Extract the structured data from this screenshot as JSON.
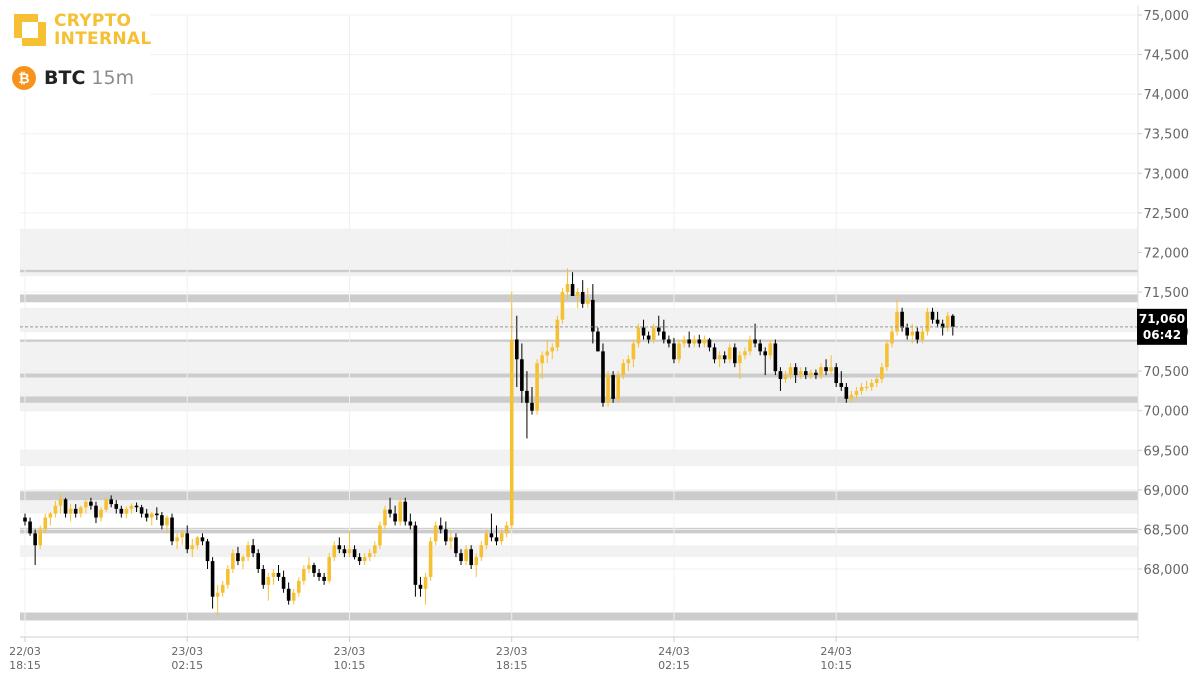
{
  "brand": {
    "line1": "CRYPTO",
    "line2": "INTERNAL",
    "color": "#f5c033"
  },
  "pair": {
    "coin_symbol": "₿",
    "coin_color": "#f7931a",
    "ticker": "BTC",
    "timeframe": "15m"
  },
  "current_price": {
    "price": "71,060",
    "countdown": "06:42",
    "value": 71060
  },
  "colors": {
    "up": "#f5c033",
    "down": "#000000",
    "band_dark": "#cccccc",
    "band_light": "#ededed",
    "grid": "#f0f0f0",
    "tick_label": "#666666"
  },
  "chart_data": {
    "type": "candlestick",
    "title": "",
    "xlabel": "",
    "ylabel": "",
    "ylim": [
      67350,
      75000
    ],
    "y_ticks": [
      68000,
      68500,
      69000,
      69500,
      70000,
      70500,
      71000,
      71500,
      72000,
      72500,
      73000,
      73500,
      74000,
      74500,
      75000
    ],
    "y_tick_labels": [
      "68,000",
      "68,500",
      "69,000",
      "69,500",
      "70,000",
      "70,500",
      "71,000",
      "71,500",
      "72,000",
      "72,500",
      "73,000",
      "73,500",
      "74,000",
      "74,500",
      "75,000"
    ],
    "x_ticks": [
      {
        "index": 0,
        "date": "22/03",
        "time": "18:15"
      },
      {
        "index": 32,
        "date": "23/03",
        "time": "02:15"
      },
      {
        "index": 64,
        "date": "23/03",
        "time": "10:15"
      },
      {
        "index": 96,
        "date": "23/03",
        "time": "18:15"
      },
      {
        "index": 128,
        "date": "24/03",
        "time": "02:15"
      },
      {
        "index": 160,
        "date": "24/03",
        "time": "10:15"
      }
    ],
    "interval": "15m",
    "grid": true,
    "levels_light": [
      [
        72300,
        71700
      ],
      [
        71300,
        71000
      ],
      [
        70900,
        70000
      ],
      [
        69500,
        69300
      ],
      [
        69000,
        68700
      ],
      [
        68300,
        68150
      ]
    ],
    "levels_dark": [
      [
        71780,
        71750
      ],
      [
        71470,
        71370
      ],
      [
        70900,
        70870
      ],
      [
        70470,
        70420
      ],
      [
        70180,
        70100
      ],
      [
        68980,
        68870
      ],
      [
        68520,
        68450
      ],
      [
        67450,
        67350
      ]
    ],
    "candles": [
      [
        68650,
        68700,
        68550,
        68600
      ],
      [
        68600,
        68650,
        68420,
        68450
      ],
      [
        68450,
        68500,
        68050,
        68300
      ],
      [
        68300,
        68550,
        68250,
        68500
      ],
      [
        68500,
        68700,
        68450,
        68650
      ],
      [
        68650,
        68720,
        68550,
        68700
      ],
      [
        68700,
        68860,
        68650,
        68800
      ],
      [
        68800,
        68950,
        68700,
        68880
      ],
      [
        68880,
        68900,
        68650,
        68700
      ],
      [
        68700,
        68820,
        68600,
        68760
      ],
      [
        68760,
        68820,
        68650,
        68700
      ],
      [
        68700,
        68800,
        68650,
        68780
      ],
      [
        68780,
        68880,
        68700,
        68850
      ],
      [
        68850,
        68900,
        68750,
        68800
      ],
      [
        68800,
        68850,
        68580,
        68650
      ],
      [
        68650,
        68780,
        68600,
        68750
      ],
      [
        68750,
        68900,
        68720,
        68880
      ],
      [
        68880,
        68930,
        68780,
        68820
      ],
      [
        68820,
        68870,
        68700,
        68760
      ],
      [
        68760,
        68800,
        68650,
        68700
      ],
      [
        68700,
        68790,
        68640,
        68760
      ],
      [
        68760,
        68830,
        68700,
        68800
      ],
      [
        68800,
        68840,
        68720,
        68780
      ],
      [
        68780,
        68810,
        68650,
        68700
      ],
      [
        68700,
        68760,
        68600,
        68650
      ],
      [
        68650,
        68720,
        68550,
        68700
      ],
      [
        68700,
        68780,
        68620,
        68680
      ],
      [
        68680,
        68720,
        68500,
        68550
      ],
      [
        68550,
        68680,
        68450,
        68650
      ],
      [
        68650,
        68700,
        68300,
        68350
      ],
      [
        68350,
        68450,
        68250,
        68400
      ],
      [
        68400,
        68500,
        68300,
        68450
      ],
      [
        68450,
        68550,
        68200,
        68250
      ],
      [
        68250,
        68380,
        68150,
        68300
      ],
      [
        68300,
        68420,
        68250,
        68400
      ],
      [
        68400,
        68450,
        68300,
        68350
      ],
      [
        68350,
        68380,
        68000,
        68100
      ],
      [
        68100,
        68150,
        67500,
        67650
      ],
      [
        67650,
        67800,
        67400,
        67700
      ],
      [
        67700,
        67850,
        67650,
        67800
      ],
      [
        67800,
        68050,
        67750,
        68000
      ],
      [
        68000,
        68250,
        67950,
        68200
      ],
      [
        68200,
        68280,
        68050,
        68100
      ],
      [
        68100,
        68180,
        68000,
        68150
      ],
      [
        68150,
        68350,
        68100,
        68300
      ],
      [
        68300,
        68380,
        68150,
        68200
      ],
      [
        68200,
        68250,
        67950,
        68000
      ],
      [
        68000,
        68050,
        67750,
        67800
      ],
      [
        67800,
        67950,
        67600,
        67900
      ],
      [
        67900,
        68000,
        67800,
        67950
      ],
      [
        67950,
        68050,
        67850,
        67900
      ],
      [
        67900,
        67980,
        67700,
        67750
      ],
      [
        67750,
        67830,
        67550,
        67600
      ],
      [
        67600,
        67750,
        67550,
        67700
      ],
      [
        67700,
        67900,
        67650,
        67850
      ],
      [
        67850,
        68050,
        67800,
        68000
      ],
      [
        68000,
        68150,
        67950,
        68050
      ],
      [
        68050,
        68080,
        67900,
        67950
      ],
      [
        67950,
        68000,
        67850,
        67900
      ],
      [
        67900,
        67950,
        67800,
        67850
      ],
      [
        67850,
        68200,
        67820,
        68150
      ],
      [
        68150,
        68350,
        68100,
        68300
      ],
      [
        68300,
        68400,
        68200,
        68250
      ],
      [
        68250,
        68300,
        68150,
        68200
      ],
      [
        68200,
        68480,
        68150,
        68250
      ],
      [
        68250,
        68300,
        68120,
        68150
      ],
      [
        68150,
        68200,
        68050,
        68100
      ],
      [
        68100,
        68200,
        68050,
        68150
      ],
      [
        68150,
        68250,
        68100,
        68200
      ],
      [
        68200,
        68350,
        68150,
        68300
      ],
      [
        68300,
        68600,
        68250,
        68550
      ],
      [
        68550,
        68800,
        68500,
        68750
      ],
      [
        68750,
        68900,
        68650,
        68700
      ],
      [
        68700,
        68800,
        68550,
        68600
      ],
      [
        68600,
        68900,
        68550,
        68850
      ],
      [
        68850,
        68900,
        68550,
        68600
      ],
      [
        68600,
        68700,
        68500,
        68550
      ],
      [
        68550,
        68600,
        67650,
        67800
      ],
      [
        67800,
        67900,
        67650,
        67750
      ],
      [
        67750,
        67950,
        67550,
        67900
      ],
      [
        67900,
        68400,
        67850,
        68350
      ],
      [
        68350,
        68600,
        68300,
        68550
      ],
      [
        68550,
        68650,
        68450,
        68500
      ],
      [
        68500,
        68600,
        68300,
        68350
      ],
      [
        68350,
        68480,
        68250,
        68400
      ],
      [
        68400,
        68450,
        68150,
        68200
      ],
      [
        68200,
        68250,
        68050,
        68100
      ],
      [
        68100,
        68300,
        68050,
        68250
      ],
      [
        68250,
        68300,
        68000,
        68050
      ],
      [
        68050,
        68200,
        67900,
        68150
      ],
      [
        68150,
        68350,
        68100,
        68300
      ],
      [
        68300,
        68500,
        68250,
        68450
      ],
      [
        68450,
        68700,
        68350,
        68400
      ],
      [
        68400,
        68550,
        68300,
        68350
      ],
      [
        68350,
        68500,
        68300,
        68450
      ],
      [
        68450,
        68600,
        68400,
        68550
      ],
      [
        68550,
        71500,
        68500,
        70900
      ],
      [
        70900,
        71200,
        70300,
        70650
      ],
      [
        70650,
        70850,
        70100,
        70250
      ],
      [
        70250,
        70500,
        69650,
        70100
      ],
      [
        70100,
        70300,
        69950,
        70000
      ],
      [
        70000,
        70650,
        69950,
        70600
      ],
      [
        70600,
        70750,
        70400,
        70700
      ],
      [
        70700,
        70900,
        70600,
        70750
      ],
      [
        70750,
        70850,
        70650,
        70800
      ],
      [
        70800,
        71200,
        70750,
        71150
      ],
      [
        71150,
        71550,
        71100,
        71500
      ],
      [
        71500,
        71800,
        71400,
        71600
      ],
      [
        71600,
        71750,
        71450,
        71450
      ],
      [
        71450,
        71550,
        71300,
        71500
      ],
      [
        71500,
        71650,
        71300,
        71350
      ],
      [
        71350,
        71550,
        71300,
        71400
      ],
      [
        71400,
        71600,
        70850,
        71000
      ],
      [
        71000,
        71050,
        70750,
        70750
      ],
      [
        70750,
        70850,
        70050,
        70100
      ],
      [
        70100,
        70500,
        70050,
        70450
      ],
      [
        70450,
        70500,
        70100,
        70150
      ],
      [
        70150,
        70500,
        70100,
        70450
      ],
      [
        70450,
        70650,
        70400,
        70600
      ],
      [
        70600,
        70700,
        70500,
        70650
      ],
      [
        70650,
        70900,
        70550,
        70850
      ],
      [
        70850,
        71100,
        70800,
        71050
      ],
      [
        71050,
        71150,
        70900,
        70950
      ],
      [
        70950,
        71000,
        70850,
        70900
      ],
      [
        70900,
        71100,
        70850,
        71050
      ],
      [
        71050,
        71200,
        70950,
        71000
      ],
      [
        71000,
        71150,
        70850,
        70900
      ],
      [
        70900,
        70950,
        70800,
        70850
      ],
      [
        70850,
        70920,
        70600,
        70650
      ],
      [
        70650,
        70900,
        70600,
        70850
      ],
      [
        70850,
        70950,
        70800,
        70900
      ],
      [
        70900,
        71000,
        70800,
        70850
      ],
      [
        70850,
        70950,
        70800,
        70900
      ],
      [
        70900,
        70960,
        70800,
        70850
      ],
      [
        70850,
        70950,
        70800,
        70900
      ],
      [
        70900,
        70920,
        70750,
        70800
      ],
      [
        70800,
        70850,
        70600,
        70650
      ],
      [
        70650,
        70750,
        70550,
        70700
      ],
      [
        70700,
        70750,
        70600,
        70650
      ],
      [
        70650,
        70850,
        70600,
        70800
      ],
      [
        70800,
        70850,
        70550,
        70600
      ],
      [
        70600,
        70750,
        70400,
        70700
      ],
      [
        70700,
        70800,
        70650,
        70750
      ],
      [
        70750,
        70950,
        70700,
        70900
      ],
      [
        70900,
        71100,
        70800,
        70850
      ],
      [
        70850,
        70900,
        70700,
        70750
      ],
      [
        70750,
        70800,
        70450,
        70700
      ],
      [
        70700,
        70900,
        70650,
        70850
      ],
      [
        70850,
        70900,
        70450,
        70500
      ],
      [
        70500,
        70550,
        70250,
        70400
      ],
      [
        70400,
        70500,
        70350,
        70450
      ],
      [
        70450,
        70600,
        70400,
        70550
      ],
      [
        70550,
        70600,
        70350,
        70450
      ],
      [
        70450,
        70550,
        70400,
        70500
      ],
      [
        70500,
        70550,
        70400,
        70450
      ],
      [
        70450,
        70520,
        70400,
        70480
      ],
      [
        70480,
        70520,
        70400,
        70450
      ],
      [
        70450,
        70600,
        70400,
        70550
      ],
      [
        70550,
        70650,
        70450,
        70500
      ],
      [
        70500,
        70700,
        70450,
        70550
      ],
      [
        70550,
        70600,
        70300,
        70350
      ],
      [
        70350,
        70500,
        70250,
        70300
      ],
      [
        70300,
        70350,
        70100,
        70150
      ],
      [
        70150,
        70250,
        70100,
        70200
      ],
      [
        70200,
        70300,
        70150,
        70250
      ],
      [
        70250,
        70350,
        70200,
        70300
      ],
      [
        70300,
        70380,
        70250,
        70300
      ],
      [
        70300,
        70400,
        70250,
        70350
      ],
      [
        70350,
        70450,
        70300,
        70400
      ],
      [
        70400,
        70600,
        70350,
        70550
      ],
      [
        70550,
        70900,
        70500,
        70850
      ],
      [
        70850,
        71050,
        70800,
        71000
      ],
      [
        71000,
        71400,
        70950,
        71250
      ],
      [
        71250,
        71300,
        71000,
        71050
      ],
      [
        71050,
        71100,
        70900,
        70950
      ],
      [
        70950,
        71100,
        70850,
        71000
      ],
      [
        71000,
        71050,
        70850,
        70900
      ],
      [
        70900,
        71050,
        70850,
        71000
      ],
      [
        71000,
        71300,
        70950,
        71250
      ],
      [
        71250,
        71300,
        71100,
        71150
      ],
      [
        71150,
        71250,
        71050,
        71100
      ],
      [
        71100,
        71150,
        70950,
        71050
      ],
      [
        71050,
        71250,
        71000,
        71200
      ],
      [
        71200,
        71220,
        70950,
        71060
      ]
    ]
  }
}
